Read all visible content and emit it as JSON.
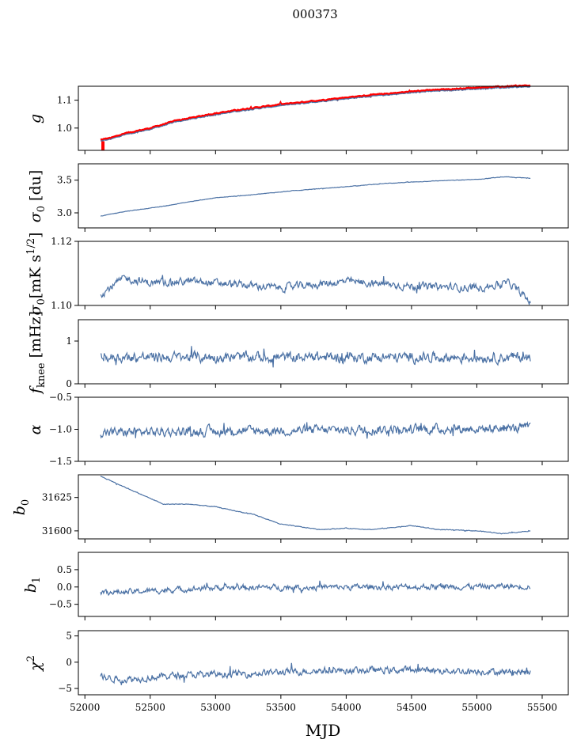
{
  "figure": {
    "title": "000373",
    "xlabel": "MJD",
    "line_color": "#4c72a5",
    "ref_color": "#ff0000"
  },
  "chart_data": {
    "type": "line",
    "title": "000373",
    "xlabel": "MJD",
    "xlim": [
      51950,
      55700
    ],
    "x_start": 52120,
    "x_end": 55410,
    "xticks": [
      52000,
      52500,
      53000,
      53500,
      54000,
      54500,
      55000,
      55500
    ],
    "xtick_labels": [
      "52000",
      "52500",
      "53000",
      "53500",
      "54000",
      "54500",
      "55000",
      "55500"
    ],
    "panels": [
      {
        "key": "g",
        "ylabel": "g",
        "ylim": [
          0.92,
          1.15
        ],
        "yticks": [
          1.0,
          1.1
        ],
        "ytick_labels": [
          "1.0",
          "1.1"
        ],
        "knots": [
          [
            52120,
            0.953
          ],
          [
            52200,
            0.96
          ],
          [
            52300,
            0.975
          ],
          [
            52500,
            0.995
          ],
          [
            52700,
            1.022
          ],
          [
            53000,
            1.048
          ],
          [
            53200,
            1.062
          ],
          [
            53500,
            1.08
          ],
          [
            53800,
            1.095
          ],
          [
            54000,
            1.105
          ],
          [
            54300,
            1.118
          ],
          [
            54600,
            1.13
          ],
          [
            55000,
            1.14
          ],
          [
            55410,
            1.148
          ]
        ],
        "noise": 0.002,
        "has_ref": true,
        "ref_offset": 0.004
      },
      {
        "key": "sigma0_du",
        "ylabel": "σ₀ [du]",
        "ylim": [
          2.77,
          3.75
        ],
        "yticks": [
          3.0,
          3.5
        ],
        "ytick_labels": [
          "3.0",
          "3.5"
        ],
        "knots": [
          [
            52120,
            2.95
          ],
          [
            52300,
            3.02
          ],
          [
            52600,
            3.1
          ],
          [
            52800,
            3.17
          ],
          [
            53000,
            3.23
          ],
          [
            53300,
            3.28
          ],
          [
            53600,
            3.34
          ],
          [
            54000,
            3.4
          ],
          [
            54300,
            3.45
          ],
          [
            54700,
            3.49
          ],
          [
            55000,
            3.51
          ],
          [
            55200,
            3.55
          ],
          [
            55410,
            3.53
          ]
        ],
        "noise": 0.004
      },
      {
        "key": "sigma0_mk",
        "ylabel": "σ₀[mK s^1/2]",
        "ylim": [
          1.1,
          1.12
        ],
        "yticks": [
          1.1,
          1.12
        ],
        "ytick_labels": [
          "1.10",
          "1.12"
        ],
        "knots": [
          [
            52120,
            1.1035
          ],
          [
            52300,
            1.1085
          ],
          [
            52500,
            1.107
          ],
          [
            52800,
            1.1075
          ],
          [
            53000,
            1.107
          ],
          [
            53500,
            1.1055
          ],
          [
            54000,
            1.1075
          ],
          [
            54500,
            1.106
          ],
          [
            55000,
            1.1055
          ],
          [
            55250,
            1.107
          ],
          [
            55410,
            1.101
          ]
        ],
        "noise": 0.0013
      },
      {
        "key": "fknee",
        "ylabel": "f_knee [mHz]",
        "ylim": [
          0.0,
          1.5
        ],
        "yticks": [
          0,
          1
        ],
        "ytick_labels": [
          "0",
          "1"
        ],
        "knots": [
          [
            52120,
            0.62
          ],
          [
            55410,
            0.62
          ]
        ],
        "noise": 0.13
      },
      {
        "key": "alpha",
        "ylabel": "α",
        "ylim": [
          -1.5,
          -0.5
        ],
        "yticks": [
          -1.5,
          -1.0,
          -0.5
        ],
        "ytick_labels": [
          "−1.5",
          "−1.0",
          "−0.5"
        ],
        "knots": [
          [
            52120,
            -1.05
          ],
          [
            55410,
            -0.98
          ]
        ],
        "noise": 0.08
      },
      {
        "key": "b0",
        "ylabel": "b₀",
        "ylim": [
          31594,
          31642
        ],
        "yticks": [
          31600,
          31625
        ],
        "ytick_labels": [
          "31600",
          "31625"
        ],
        "knots": [
          [
            52120,
            31641
          ],
          [
            52300,
            31633
          ],
          [
            52600,
            31620
          ],
          [
            52800,
            31620
          ],
          [
            53000,
            31618
          ],
          [
            53300,
            31612
          ],
          [
            53500,
            31605
          ],
          [
            53800,
            31601
          ],
          [
            54000,
            31602
          ],
          [
            54200,
            31601
          ],
          [
            54500,
            31604
          ],
          [
            54700,
            31601
          ],
          [
            55000,
            31600
          ],
          [
            55200,
            31598
          ],
          [
            55410,
            31600
          ]
        ],
        "noise": 0.3
      },
      {
        "key": "b1",
        "ylabel": "b₁",
        "ylim": [
          -0.85,
          1.0
        ],
        "yticks": [
          -0.5,
          0.0,
          0.5
        ],
        "ytick_labels": [
          "−0.5",
          "0.0",
          "0.5"
        ],
        "knots": [
          [
            52120,
            -0.15
          ],
          [
            52300,
            -0.15
          ],
          [
            53000,
            -0.02
          ],
          [
            55410,
            0.02
          ]
        ],
        "noise": 0.09
      },
      {
        "key": "chi2",
        "ylabel": "χ²",
        "ylim": [
          -6.2,
          6.0
        ],
        "yticks": [
          -5,
          0,
          5
        ],
        "ytick_labels": [
          "−5",
          "0",
          "5"
        ],
        "knots": [
          [
            52120,
            -2.8
          ],
          [
            52300,
            -3.3
          ],
          [
            52700,
            -2.5
          ],
          [
            53200,
            -2.2
          ],
          [
            53800,
            -1.6
          ],
          [
            54500,
            -1.5
          ],
          [
            55410,
            -1.9
          ]
        ],
        "noise": 0.7
      }
    ]
  }
}
